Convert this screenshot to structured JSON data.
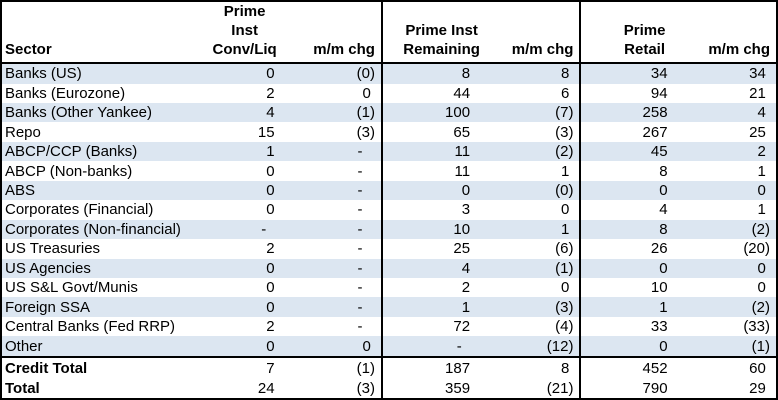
{
  "colors": {
    "stripe": "#DCE6F1",
    "border": "#000000",
    "text": "#000000",
    "background": "#FFFFFF"
  },
  "chart_data": {
    "type": "table",
    "title": "",
    "layout": {
      "striped_rows": true,
      "section_dividers_after_columns": [
        "mm_chg_1",
        "mm_chg_2"
      ],
      "negative_values_in_parentheses": true
    },
    "columns": [
      {
        "id": "sector",
        "label": "Sector"
      },
      {
        "id": "prime_inst_conv_liq",
        "label_line1": "Prime Inst",
        "label_line2": "Conv/Liq"
      },
      {
        "id": "mm_chg_1",
        "label": "m/m chg"
      },
      {
        "id": "prime_inst_remaining",
        "label_line1": "Prime Inst",
        "label_line2": "Remaining"
      },
      {
        "id": "mm_chg_2",
        "label": "m/m chg"
      },
      {
        "id": "prime_retail",
        "label": "Prime Retail"
      },
      {
        "id": "mm_chg_3",
        "label": "m/m chg"
      }
    ],
    "rows": [
      {
        "sector": "Banks (US)",
        "values": [
          "0",
          "(0)",
          "8",
          "8",
          "34",
          "34"
        ]
      },
      {
        "sector": "Banks (Eurozone)",
        "values": [
          "2",
          "0",
          "44",
          "6",
          "94",
          "21"
        ]
      },
      {
        "sector": "Banks (Other Yankee)",
        "values": [
          "4",
          "(1)",
          "100",
          "(7)",
          "258",
          "4"
        ]
      },
      {
        "sector": "Repo",
        "values": [
          "15",
          "(3)",
          "65",
          "(3)",
          "267",
          "25"
        ]
      },
      {
        "sector": "ABCP/CCP (Banks)",
        "values": [
          "1",
          "-",
          "11",
          "(2)",
          "45",
          "2"
        ]
      },
      {
        "sector": "ABCP (Non-banks)",
        "values": [
          "0",
          "-",
          "11",
          "1",
          "8",
          "1"
        ]
      },
      {
        "sector": "ABS",
        "values": [
          "0",
          "-",
          "0",
          "(0)",
          "0",
          "0"
        ]
      },
      {
        "sector": "Corporates (Financial)",
        "values": [
          "0",
          "-",
          "3",
          "0",
          "4",
          "1"
        ]
      },
      {
        "sector": "Corporates (Non-financial)",
        "values": [
          "-",
          "-",
          "10",
          "1",
          "8",
          "(2)"
        ]
      },
      {
        "sector": "US Treasuries",
        "values": [
          "2",
          "-",
          "25",
          "(6)",
          "26",
          "(20)"
        ]
      },
      {
        "sector": "US Agencies",
        "values": [
          "0",
          "-",
          "4",
          "(1)",
          "0",
          "0"
        ]
      },
      {
        "sector": "US S&L Govt/Munis",
        "values": [
          "0",
          "-",
          "2",
          "0",
          "10",
          "0"
        ]
      },
      {
        "sector": "Foreign SSA",
        "values": [
          "0",
          "-",
          "1",
          "(3)",
          "1",
          "(2)"
        ]
      },
      {
        "sector": "Central Banks (Fed RRP)",
        "values": [
          "2",
          "-",
          "72",
          "(4)",
          "33",
          "(33)"
        ]
      },
      {
        "sector": "Other",
        "values": [
          "0",
          "0",
          "-",
          "(12)",
          "0",
          "(1)"
        ]
      }
    ],
    "total_rows": [
      {
        "sector": "Credit Total",
        "values": [
          "7",
          "(1)",
          "187",
          "8",
          "452",
          "60"
        ]
      },
      {
        "sector": "Total",
        "values": [
          "24",
          "(3)",
          "359",
          "(21)",
          "790",
          "29"
        ]
      }
    ]
  }
}
